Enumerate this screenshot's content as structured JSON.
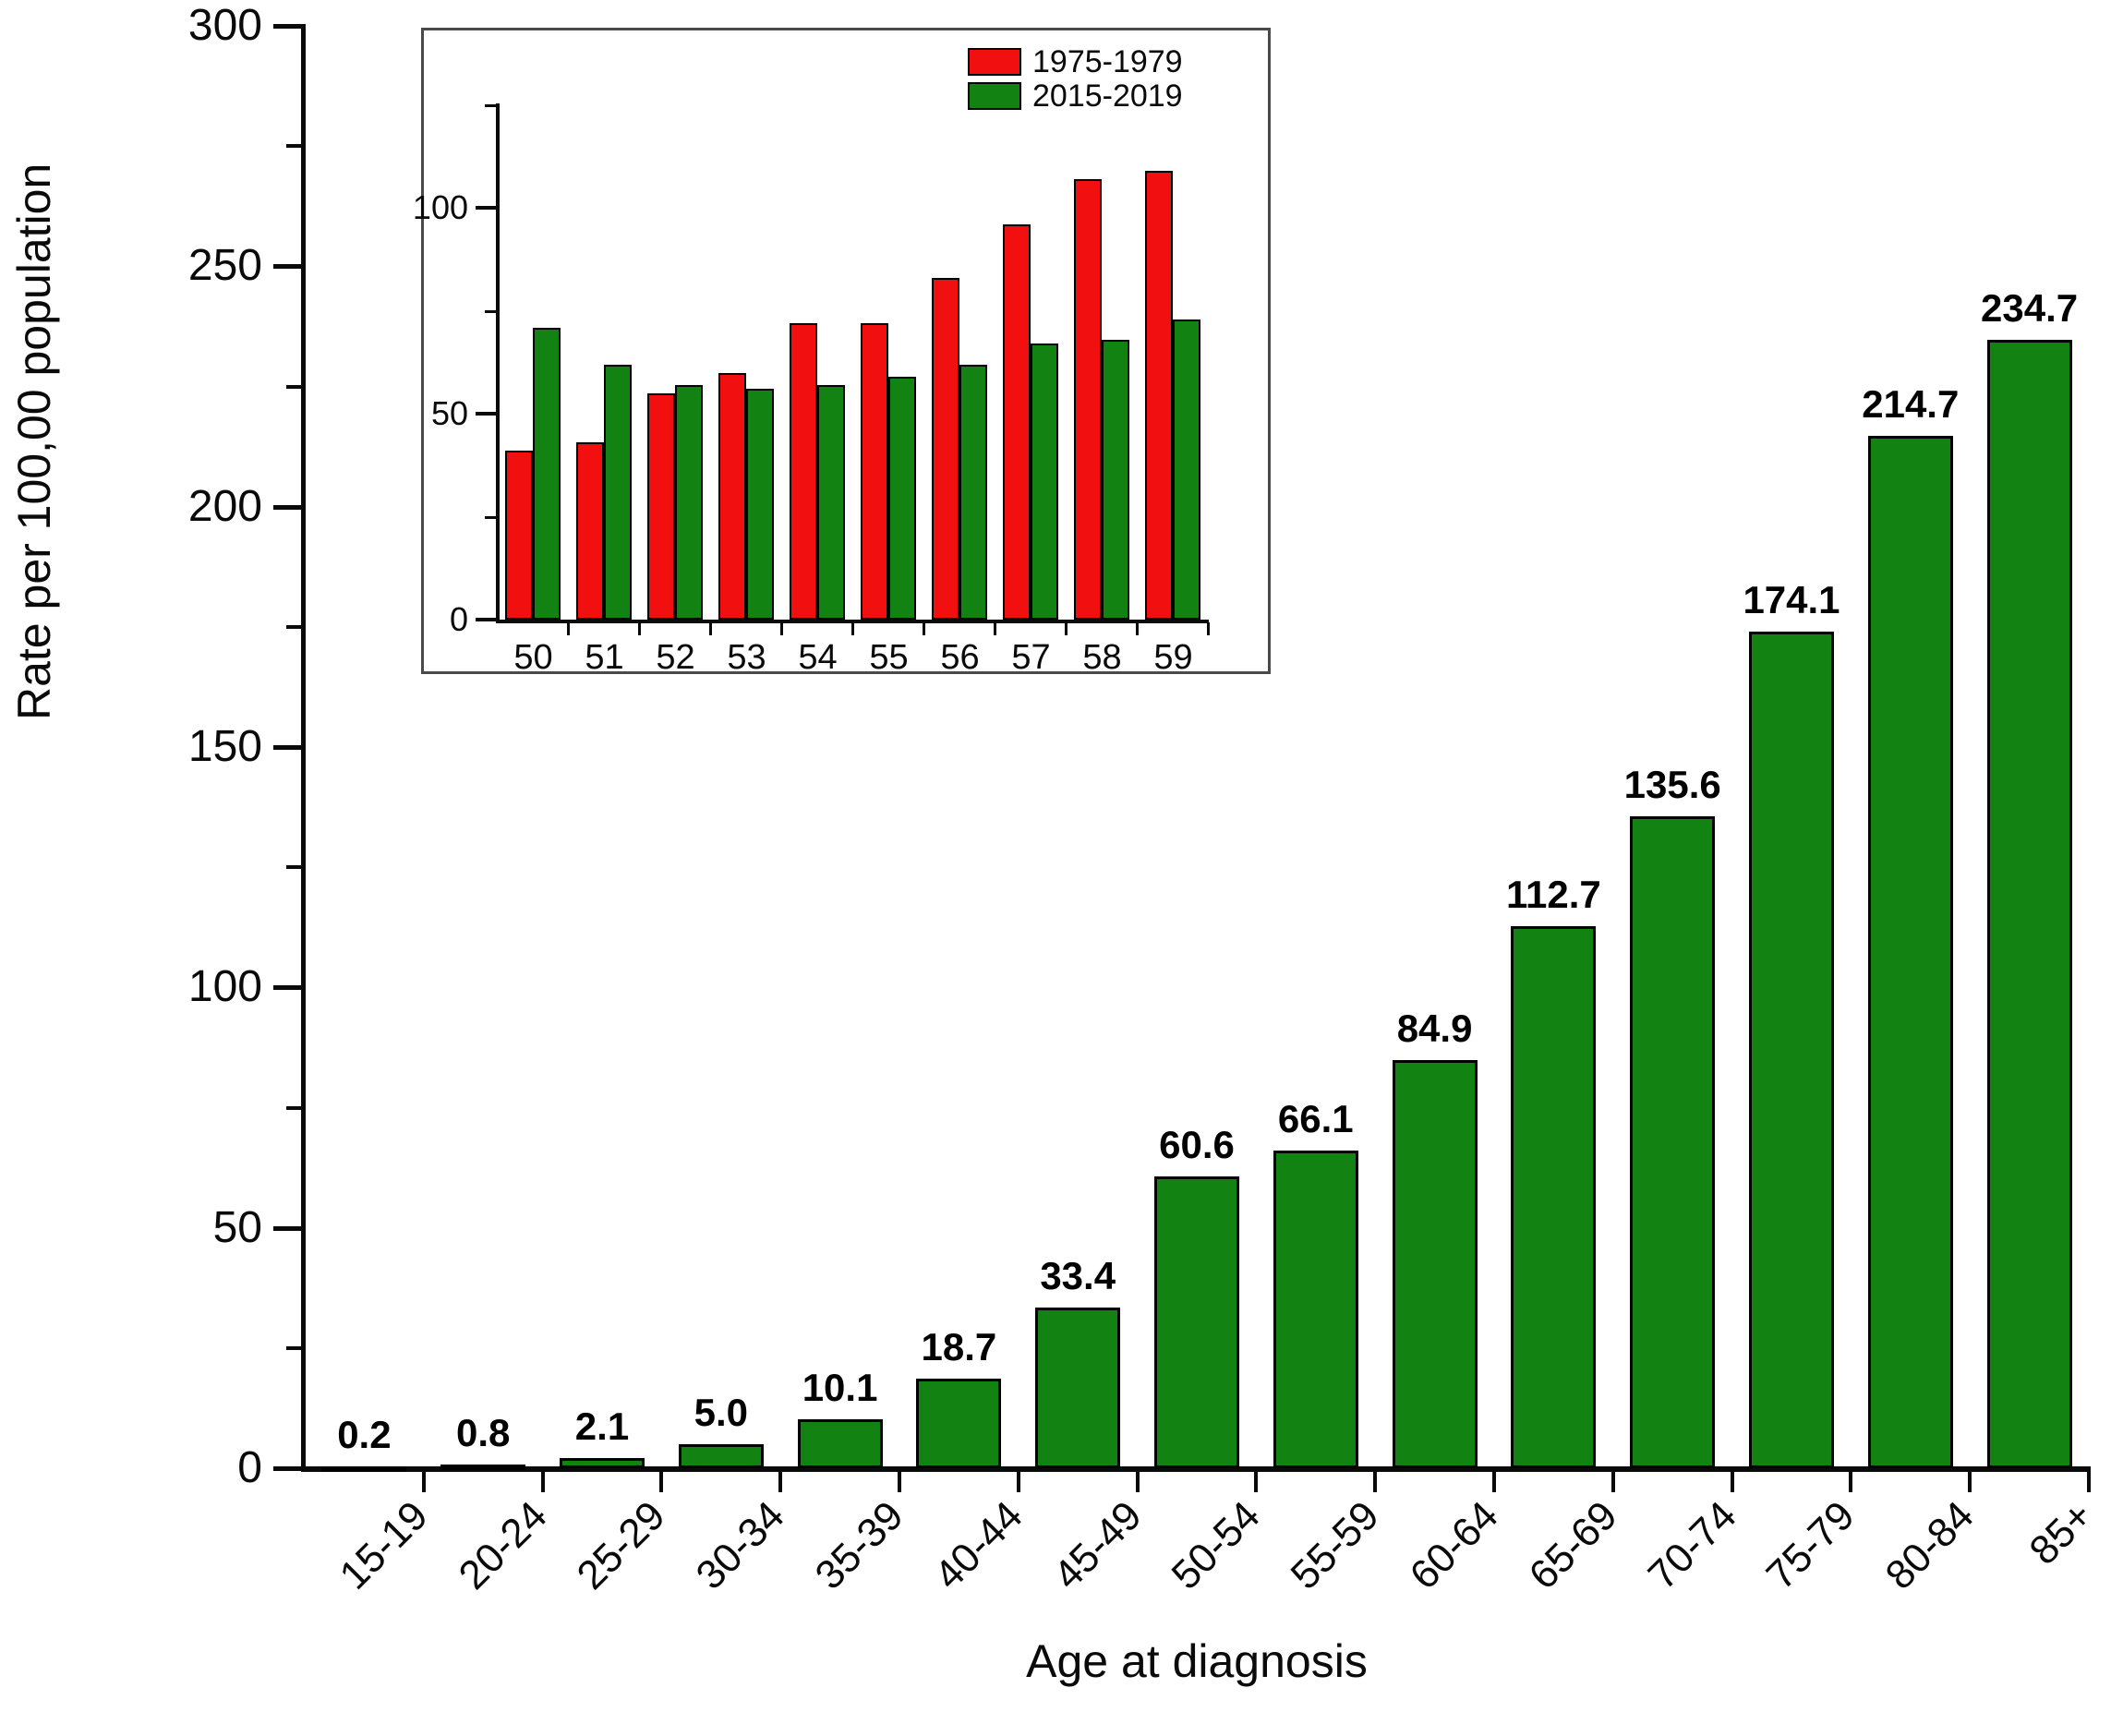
{
  "chart_data": [
    {
      "type": "bar",
      "role": "main-chart",
      "title": "",
      "xlabel": "Age at diagnosis",
      "ylabel": "Rate per 100,00 population",
      "ylim": [
        0,
        300
      ],
      "yticks_major": [
        0,
        50,
        100,
        150,
        200,
        250,
        300
      ],
      "yticks_minor": [
        25,
        75,
        125,
        175,
        225,
        275
      ],
      "grid": "off",
      "categories": [
        "15-19",
        "20-24",
        "25-29",
        "30-34",
        "35-39",
        "40-44",
        "45-49",
        "50-54",
        "55-59",
        "60-64",
        "65-69",
        "70-74",
        "75-79",
        "80-84",
        "85+"
      ],
      "values": [
        0.2,
        0.8,
        2.1,
        5.0,
        10.1,
        18.7,
        33.4,
        60.6,
        66.1,
        84.9,
        112.7,
        135.6,
        174.1,
        214.7,
        234.7
      ],
      "value_labels": [
        "0.2",
        "0.8",
        "2.1",
        "5.0",
        "10.1",
        "18.7",
        "33.4",
        "60.6",
        "66.1",
        "84.9",
        "112.7",
        "135.6",
        "174.1",
        "214.7",
        "234.7"
      ],
      "bar_color": "#128212",
      "bar_border_color": "#000000",
      "axis_color": "#0a0a0a"
    },
    {
      "type": "bar",
      "role": "inset-chart",
      "title": "",
      "xlabel": "",
      "ylabel": "",
      "ylim": [
        0,
        125
      ],
      "yticks_major": [
        0,
        50,
        100
      ],
      "ytick_labels": [
        "0",
        "50",
        "100"
      ],
      "yticks_minor": [
        25,
        75,
        125
      ],
      "grid": "off",
      "legend_position": "top-right",
      "categories": [
        "50",
        "51",
        "52",
        "53",
        "54",
        "55",
        "56",
        "57",
        "58",
        "59"
      ],
      "series": [
        {
          "name": "1975-1979",
          "color": "#f20f0f",
          "values": [
            41,
            43,
            55,
            60,
            72,
            72,
            83,
            96,
            107,
            109
          ]
        },
        {
          "name": "2015-2019",
          "color": "#128212",
          "values": [
            71,
            62,
            57,
            56,
            57,
            59,
            62,
            67,
            68,
            73
          ]
        }
      ],
      "bar_border_color": "#000000",
      "axis_color": "#0a0a0a"
    }
  ]
}
